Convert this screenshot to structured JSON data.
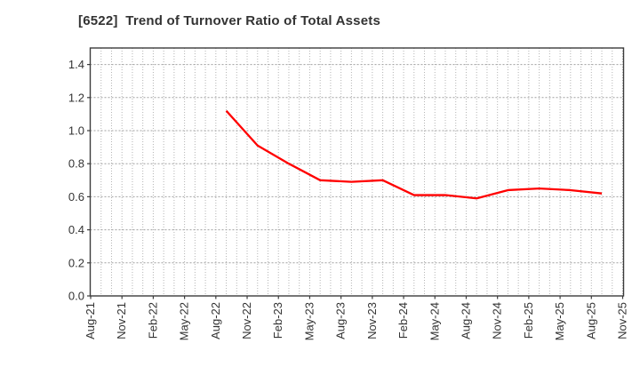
{
  "title": "[6522]  Trend of Turnover Ratio of Total Assets",
  "colors": {
    "line": "#ff0000",
    "axis": "#3c3c3c",
    "grid_horizontal": "#a0a0a0",
    "grid_vertical": "#b4b4b4",
    "text": "#333333",
    "background": "#ffffff"
  },
  "chart_data": {
    "type": "line",
    "title": "[6522]  Trend of Turnover Ratio of Total Assets",
    "legend": {
      "visible": false
    },
    "grid": {
      "horizontal": true,
      "vertical": true,
      "style": "dotted",
      "vertical_interval": "monthly"
    },
    "x_axis": {
      "range_labels": [
        "Aug-21",
        "Nov-25"
      ],
      "range_months": [
        0,
        51
      ],
      "tick_labels": [
        "Aug-21",
        "Nov-21",
        "Feb-22",
        "May-22",
        "Aug-22",
        "Nov-22",
        "Feb-23",
        "May-23",
        "Aug-23",
        "Nov-23",
        "Feb-24",
        "May-24",
        "Aug-24",
        "Nov-24",
        "Feb-25",
        "May-25",
        "Aug-25",
        "Nov-25"
      ],
      "tick_month_indices": [
        0,
        3,
        6,
        9,
        12,
        15,
        18,
        21,
        24,
        27,
        30,
        33,
        36,
        39,
        42,
        45,
        48,
        51
      ]
    },
    "y_axis": {
      "min": 0.0,
      "max": 1.5,
      "tick_step": 0.2,
      "tick_labels": [
        "0.0",
        "0.2",
        "0.4",
        "0.6",
        "0.8",
        "1.0",
        "1.2",
        "1.4"
      ]
    },
    "series": [
      {
        "name": "Turnover Ratio of Total Assets",
        "color": "#ff0000",
        "line_width": 2.3,
        "points": [
          {
            "date": "Sep-22",
            "month_index": 13,
            "value": 1.12
          },
          {
            "date": "Dec-22",
            "month_index": 16,
            "value": 0.91
          },
          {
            "date": "Mar-23",
            "month_index": 19,
            "value": 0.8
          },
          {
            "date": "Jun-23",
            "month_index": 22,
            "value": 0.7
          },
          {
            "date": "Sep-23",
            "month_index": 25,
            "value": 0.69
          },
          {
            "date": "Dec-23",
            "month_index": 28,
            "value": 0.7
          },
          {
            "date": "Mar-24",
            "month_index": 31,
            "value": 0.61
          },
          {
            "date": "Jun-24",
            "month_index": 34,
            "value": 0.61
          },
          {
            "date": "Sep-24",
            "month_index": 37,
            "value": 0.59
          },
          {
            "date": "Dec-24",
            "month_index": 40,
            "value": 0.64
          },
          {
            "date": "Mar-25",
            "month_index": 43,
            "value": 0.65
          },
          {
            "date": "Jun-25",
            "month_index": 46,
            "value": 0.64
          },
          {
            "date": "Sep-25",
            "month_index": 49,
            "value": 0.62
          }
        ]
      }
    ]
  }
}
